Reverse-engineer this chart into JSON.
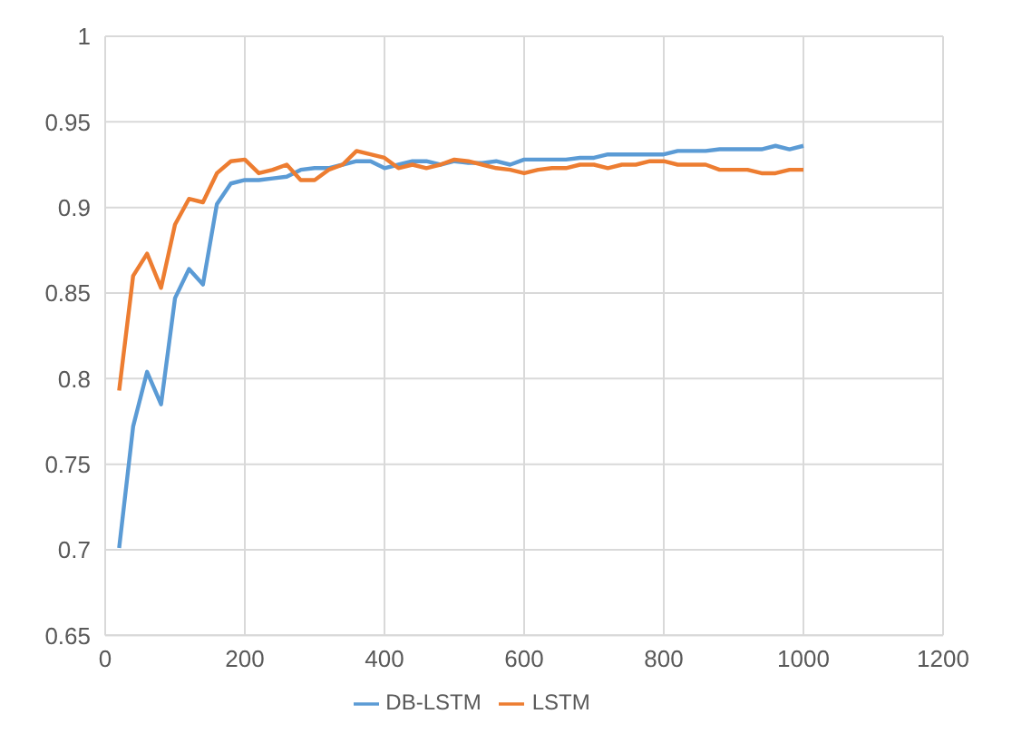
{
  "chart_data": {
    "type": "line",
    "x": [
      20,
      40,
      60,
      80,
      100,
      120,
      140,
      160,
      180,
      200,
      220,
      240,
      260,
      280,
      300,
      320,
      340,
      360,
      380,
      400,
      420,
      440,
      460,
      480,
      500,
      520,
      540,
      560,
      580,
      600,
      620,
      640,
      660,
      680,
      700,
      720,
      740,
      760,
      780,
      800,
      820,
      840,
      860,
      880,
      900,
      920,
      940,
      960,
      980,
      1000
    ],
    "series": [
      {
        "name": "DB-LSTM",
        "color": "#5b9bd5",
        "values": [
          0.701,
          0.772,
          0.804,
          0.785,
          0.847,
          0.864,
          0.855,
          0.902,
          0.914,
          0.916,
          0.916,
          0.917,
          0.918,
          0.922,
          0.923,
          0.923,
          0.925,
          0.927,
          0.927,
          0.923,
          0.925,
          0.927,
          0.927,
          0.925,
          0.927,
          0.926,
          0.926,
          0.927,
          0.925,
          0.928,
          0.928,
          0.928,
          0.928,
          0.929,
          0.929,
          0.931,
          0.931,
          0.931,
          0.931,
          0.931,
          0.933,
          0.933,
          0.933,
          0.934,
          0.934,
          0.934,
          0.934,
          0.936,
          0.934,
          0.936
        ]
      },
      {
        "name": "LSTM",
        "color": "#ed7d31",
        "values": [
          0.793,
          0.86,
          0.873,
          0.853,
          0.89,
          0.905,
          0.903,
          0.92,
          0.927,
          0.928,
          0.92,
          0.922,
          0.925,
          0.916,
          0.916,
          0.922,
          0.925,
          0.933,
          0.931,
          0.929,
          0.923,
          0.925,
          0.923,
          0.925,
          0.928,
          0.927,
          0.925,
          0.923,
          0.922,
          0.92,
          0.922,
          0.923,
          0.923,
          0.925,
          0.925,
          0.923,
          0.925,
          0.925,
          0.927,
          0.927,
          0.925,
          0.925,
          0.925,
          0.922,
          0.922,
          0.922,
          0.92,
          0.92,
          0.922,
          0.922
        ]
      }
    ],
    "xlim": [
      0,
      1200
    ],
    "xticks": [
      0,
      200,
      400,
      600,
      800,
      1000,
      1200
    ],
    "ylim": [
      0.65,
      1
    ],
    "yticks": [
      0.65,
      0.7,
      0.75,
      0.8,
      0.85,
      0.9,
      0.95,
      1
    ],
    "grid": true,
    "legend": "bottom",
    "marker": "none",
    "line_style": "solid"
  }
}
